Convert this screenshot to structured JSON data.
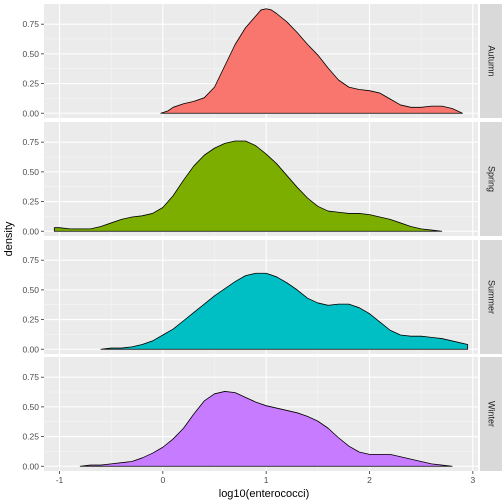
{
  "chart_data": {
    "type": "area",
    "facet_type": "vertical-strips",
    "xlabel": "log10(enterococci)",
    "ylabel": "density",
    "xlim": [
      -1.15,
      3.05
    ],
    "ylim": [
      -0.04,
      0.92
    ],
    "x_ticks": [
      -1,
      0,
      1,
      2,
      3
    ],
    "x_tick_labels": [
      "-1",
      "0",
      "1",
      "2",
      "3"
    ],
    "y_ticks": [
      0.0,
      0.25,
      0.5,
      0.75
    ],
    "y_tick_labels": [
      "0.00",
      "0.25",
      "0.50",
      "0.75"
    ],
    "grid": true,
    "panel_background": "#ebebeb",
    "strip_background": "#d9d9d9",
    "series": [
      {
        "name": "Autumn",
        "color": "#f8766d",
        "points": [
          [
            -0.02,
            0.0
          ],
          [
            0.05,
            0.02
          ],
          [
            0.1,
            0.05
          ],
          [
            0.2,
            0.08
          ],
          [
            0.3,
            0.1
          ],
          [
            0.4,
            0.13
          ],
          [
            0.5,
            0.22
          ],
          [
            0.6,
            0.4
          ],
          [
            0.7,
            0.58
          ],
          [
            0.8,
            0.72
          ],
          [
            0.9,
            0.82
          ],
          [
            0.95,
            0.87
          ],
          [
            1.0,
            0.88
          ],
          [
            1.05,
            0.87
          ],
          [
            1.1,
            0.84
          ],
          [
            1.2,
            0.77
          ],
          [
            1.3,
            0.68
          ],
          [
            1.4,
            0.58
          ],
          [
            1.5,
            0.49
          ],
          [
            1.6,
            0.38
          ],
          [
            1.7,
            0.28
          ],
          [
            1.8,
            0.22
          ],
          [
            1.9,
            0.2
          ],
          [
            2.0,
            0.19
          ],
          [
            2.1,
            0.17
          ],
          [
            2.2,
            0.12
          ],
          [
            2.3,
            0.07
          ],
          [
            2.4,
            0.05
          ],
          [
            2.5,
            0.05
          ],
          [
            2.6,
            0.06
          ],
          [
            2.7,
            0.06
          ],
          [
            2.8,
            0.04
          ],
          [
            2.9,
            0.0
          ]
        ]
      },
      {
        "name": "Spring",
        "color": "#7cae00",
        "points": [
          [
            -1.05,
            0.03
          ],
          [
            -1.0,
            0.03
          ],
          [
            -0.9,
            0.02
          ],
          [
            -0.8,
            0.02
          ],
          [
            -0.7,
            0.02
          ],
          [
            -0.6,
            0.04
          ],
          [
            -0.5,
            0.07
          ],
          [
            -0.4,
            0.1
          ],
          [
            -0.3,
            0.12
          ],
          [
            -0.2,
            0.13
          ],
          [
            -0.1,
            0.15
          ],
          [
            0.0,
            0.2
          ],
          [
            0.1,
            0.3
          ],
          [
            0.2,
            0.43
          ],
          [
            0.3,
            0.55
          ],
          [
            0.4,
            0.64
          ],
          [
            0.5,
            0.7
          ],
          [
            0.6,
            0.74
          ],
          [
            0.7,
            0.76
          ],
          [
            0.8,
            0.76
          ],
          [
            0.9,
            0.72
          ],
          [
            1.0,
            0.65
          ],
          [
            1.1,
            0.57
          ],
          [
            1.2,
            0.47
          ],
          [
            1.3,
            0.37
          ],
          [
            1.4,
            0.28
          ],
          [
            1.5,
            0.21
          ],
          [
            1.6,
            0.17
          ],
          [
            1.7,
            0.16
          ],
          [
            1.8,
            0.15
          ],
          [
            1.9,
            0.15
          ],
          [
            2.0,
            0.14
          ],
          [
            2.1,
            0.12
          ],
          [
            2.2,
            0.1
          ],
          [
            2.3,
            0.07
          ],
          [
            2.4,
            0.04
          ],
          [
            2.5,
            0.02
          ],
          [
            2.6,
            0.01
          ],
          [
            2.7,
            0.0
          ]
        ]
      },
      {
        "name": "Summer",
        "color": "#00bfc4",
        "points": [
          [
            -0.6,
            0.0
          ],
          [
            -0.5,
            0.01
          ],
          [
            -0.4,
            0.01
          ],
          [
            -0.3,
            0.02
          ],
          [
            -0.2,
            0.04
          ],
          [
            -0.1,
            0.07
          ],
          [
            0.0,
            0.12
          ],
          [
            0.1,
            0.17
          ],
          [
            0.2,
            0.24
          ],
          [
            0.3,
            0.31
          ],
          [
            0.4,
            0.38
          ],
          [
            0.5,
            0.45
          ],
          [
            0.6,
            0.51
          ],
          [
            0.7,
            0.57
          ],
          [
            0.8,
            0.62
          ],
          [
            0.9,
            0.64
          ],
          [
            1.0,
            0.64
          ],
          [
            1.1,
            0.61
          ],
          [
            1.2,
            0.56
          ],
          [
            1.3,
            0.5
          ],
          [
            1.4,
            0.43
          ],
          [
            1.5,
            0.39
          ],
          [
            1.6,
            0.37
          ],
          [
            1.7,
            0.38
          ],
          [
            1.8,
            0.38
          ],
          [
            1.9,
            0.35
          ],
          [
            2.0,
            0.3
          ],
          [
            2.1,
            0.23
          ],
          [
            2.2,
            0.16
          ],
          [
            2.3,
            0.12
          ],
          [
            2.4,
            0.11
          ],
          [
            2.5,
            0.11
          ],
          [
            2.6,
            0.1
          ],
          [
            2.7,
            0.09
          ],
          [
            2.8,
            0.07
          ],
          [
            2.9,
            0.05
          ],
          [
            2.95,
            0.04
          ]
        ]
      },
      {
        "name": "Winter",
        "color": "#c77cff",
        "points": [
          [
            -0.8,
            0.0
          ],
          [
            -0.7,
            0.01
          ],
          [
            -0.6,
            0.01
          ],
          [
            -0.5,
            0.02
          ],
          [
            -0.4,
            0.03
          ],
          [
            -0.3,
            0.04
          ],
          [
            -0.2,
            0.07
          ],
          [
            -0.1,
            0.11
          ],
          [
            0.0,
            0.16
          ],
          [
            0.1,
            0.23
          ],
          [
            0.2,
            0.32
          ],
          [
            0.3,
            0.44
          ],
          [
            0.4,
            0.55
          ],
          [
            0.5,
            0.61
          ],
          [
            0.6,
            0.63
          ],
          [
            0.7,
            0.62
          ],
          [
            0.8,
            0.58
          ],
          [
            0.9,
            0.54
          ],
          [
            1.0,
            0.51
          ],
          [
            1.1,
            0.49
          ],
          [
            1.2,
            0.47
          ],
          [
            1.3,
            0.45
          ],
          [
            1.4,
            0.42
          ],
          [
            1.5,
            0.38
          ],
          [
            1.6,
            0.32
          ],
          [
            1.7,
            0.24
          ],
          [
            1.8,
            0.17
          ],
          [
            1.9,
            0.12
          ],
          [
            2.0,
            0.1
          ],
          [
            2.1,
            0.1
          ],
          [
            2.2,
            0.1
          ],
          [
            2.3,
            0.08
          ],
          [
            2.4,
            0.06
          ],
          [
            2.5,
            0.04
          ],
          [
            2.6,
            0.02
          ],
          [
            2.7,
            0.01
          ],
          [
            2.8,
            0.0
          ]
        ]
      }
    ]
  }
}
